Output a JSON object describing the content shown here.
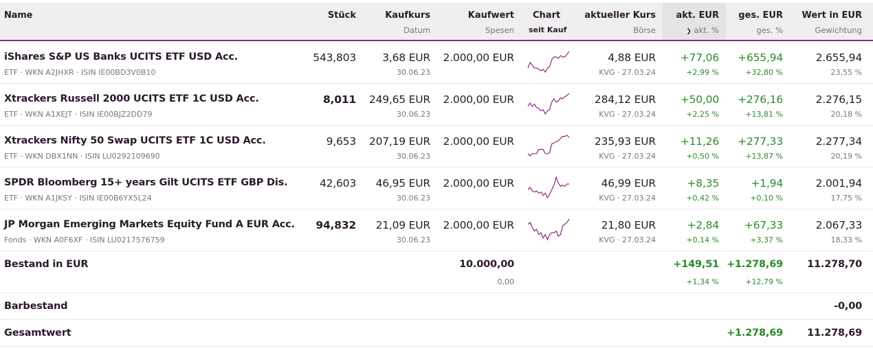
{
  "header": {
    "name": "Name",
    "stueck": "Stück",
    "kaufkurs": "Kaufkurs",
    "datum": "Datum",
    "kaufwert": "Kaufwert",
    "spesen": "Spesen",
    "chart": "Chart",
    "seit_kauf": "seit Kauf",
    "aktueller_kurs": "aktueller Kurs",
    "boerse": "Börse",
    "akt_eur": "akt. EUR",
    "akt_pct": "akt. %",
    "ges_eur": "ges. EUR",
    "ges_pct": "ges. %",
    "wert": "Wert in EUR",
    "gewichtung": "Gewichtung",
    "sort_icon": "chevron-down-icon"
  },
  "colors": {
    "accent": "#8a2a7c",
    "positive": "#2a8a2a",
    "text": "#2a1a2c"
  },
  "rows": [
    {
      "name": "iShares S&P US Banks UCITS ETF USD Acc.",
      "sub": "ETF · WKN A2JHXR · ISIN IE00BD3V0B10",
      "stueck": "543,803",
      "stueck_bold": false,
      "kaufkurs": "3,68 EUR",
      "datum": "30.06.23",
      "kaufwert": "2.000,00 EUR",
      "kurs": "4,88 EUR",
      "boerse": "KVG · 27.03.24",
      "akt_eur": "+77,06",
      "akt_pct": "+2,99 %",
      "ges_eur": "+655,94",
      "ges_pct": "+32,80 %",
      "wert": "2.655,94",
      "gewichtung": "23,55 %",
      "spark": [
        5,
        9,
        7,
        5,
        5,
        4,
        3,
        4,
        2,
        5,
        6,
        11,
        13,
        13,
        12,
        14,
        13,
        13,
        15,
        17
      ]
    },
    {
      "name": "Xtrackers Russell 2000 UCITS ETF 1C USD Acc.",
      "sub": "ETF · WKN A1XEJT · ISIN IE00BJZ2DD79",
      "stueck": "8,011",
      "stueck_bold": true,
      "kaufkurs": "249,65 EUR",
      "datum": "30.06.23",
      "kaufwert": "2.000,00 EUR",
      "kurs": "284,12 EUR",
      "boerse": "KVG · 27.03.24",
      "akt_eur": "+50,00",
      "akt_pct": "+2,25 %",
      "ges_eur": "+276,16",
      "ges_pct": "+13,81 %",
      "wert": "2.276,15",
      "gewichtung": "20,18 %",
      "spark": [
        7,
        10,
        7,
        9,
        6,
        5,
        3,
        4,
        0,
        3,
        4,
        11,
        14,
        11,
        12,
        15,
        14,
        16,
        17,
        19
      ]
    },
    {
      "name": "Xtrackers Nifty 50 Swap UCITS ETF 1C USD Acc.",
      "sub": "ETF · WKN DBX1NN · ISIN LU0292109690",
      "stueck": "9,653",
      "stueck_bold": false,
      "kaufkurs": "207,19 EUR",
      "datum": "30.06.23",
      "kaufwert": "2.000,00 EUR",
      "kurs": "235,93 EUR",
      "boerse": "KVG · 27.03.24",
      "akt_eur": "+11,26",
      "akt_pct": "+0,50 %",
      "ges_eur": "+277,33",
      "ges_pct": "+13,87 %",
      "wert": "2.277,34",
      "gewichtung": "20,19 %",
      "spark": [
        2,
        0,
        2,
        2,
        2,
        6,
        6,
        6,
        2,
        2,
        3,
        11,
        12,
        13,
        14,
        16,
        18,
        18,
        19,
        17
      ]
    },
    {
      "name": "SPDR Bloomberg 15+ years Gilt UCITS ETF GBP Dis.",
      "sub": "ETF · WKN A1JKSY · ISIN IE00B6YX5L24",
      "stueck": "42,603",
      "stueck_bold": false,
      "kaufkurs": "46,95 EUR",
      "datum": "30.06.23",
      "kaufwert": "2.000,00 EUR",
      "kurs": "46,99 EUR",
      "boerse": "KVG · 27.03.24",
      "akt_eur": "+8,35",
      "akt_pct": "+0,42 %",
      "ges_eur": "+1,94",
      "ges_pct": "+0,10 %",
      "wert": "2.001,94",
      "gewichtung": "17,75 %",
      "spark": [
        8,
        10,
        7,
        6,
        7,
        5,
        6,
        3,
        5,
        1,
        4,
        8,
        12,
        19,
        14,
        11,
        12,
        11,
        13,
        13
      ]
    },
    {
      "name": "JP Morgan Emerging Markets Equity Fund A EUR Acc.",
      "sub": "Fonds · WKN A0F6XF · ISIN LU0217576759",
      "stueck": "94,832",
      "stueck_bold": true,
      "kaufkurs": "21,09 EUR",
      "datum": "30.06.23",
      "kaufwert": "2.000,00 EUR",
      "kurs": "21,80 EUR",
      "boerse": "KVG · 27.03.24",
      "akt_eur": "+2,84",
      "akt_pct": "+0,14 %",
      "ges_eur": "+67,33",
      "ges_pct": "+3,37 %",
      "wert": "2.067,33",
      "gewichtung": "18,33 %",
      "spark": [
        12,
        13,
        10,
        8,
        9,
        6,
        7,
        4,
        6,
        3,
        6,
        7,
        7,
        8,
        5,
        6,
        11,
        12,
        13,
        15
      ]
    }
  ],
  "bestand": {
    "label": "Bestand in EUR",
    "kaufwert": "10.000,00",
    "spesen": "0,00",
    "akt_eur": "+149,51",
    "akt_pct": "+1,34 %",
    "ges_eur": "+1.278,69",
    "ges_pct": "+12,79 %",
    "wert": "11.278,70"
  },
  "barbestand": {
    "label": "Barbestand",
    "wert": "-0,00"
  },
  "gesamt": {
    "label": "Gesamtwert",
    "ges_eur": "+1.278,69",
    "wert": "11.278,69"
  }
}
